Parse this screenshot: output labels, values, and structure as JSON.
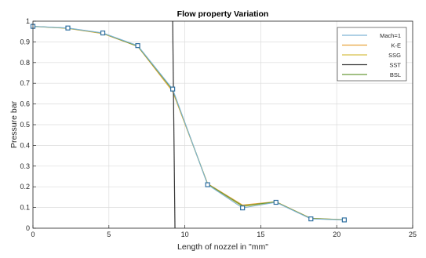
{
  "chart_data": {
    "type": "line",
    "title": "Flow property Variation",
    "xlabel": "Length of nozzel in \"mm\"",
    "ylabel": "Pressure  bar",
    "xlim": [
      0,
      25
    ],
    "ylim": [
      0,
      1
    ],
    "xticks": [
      "0",
      "5",
      "10",
      "15",
      "20",
      "25"
    ],
    "yticks": [
      "0",
      "0.1",
      "0.2",
      "0.3",
      "0.4",
      "0.5",
      "0.6",
      "0.7",
      "0.8",
      "0.9",
      "1"
    ],
    "grid": true,
    "legend_position": "top-right",
    "series": [
      {
        "name": "Mach=1",
        "color": "#7fb3d5",
        "marker": "square",
        "x": [
          0,
          2.3,
          4.6,
          6.9,
          9.2,
          11.5,
          13.8,
          16.0,
          18.3,
          20.5
        ],
        "y": [
          0.975,
          0.967,
          0.943,
          0.882,
          0.672,
          0.21,
          0.098,
          0.125,
          0.045,
          0.04
        ]
      },
      {
        "name": "K-E",
        "color": "#e8a33d",
        "marker": "none",
        "x": [
          0,
          2.3,
          4.6,
          6.9,
          9.2,
          11.5,
          13.8,
          16.0,
          18.3,
          20.5
        ],
        "y": [
          0.975,
          0.965,
          0.94,
          0.878,
          0.66,
          0.215,
          0.112,
          0.128,
          0.048,
          0.041
        ]
      },
      {
        "name": "SSG",
        "color": "#d8c04a",
        "marker": "none",
        "x": [
          0,
          2.3,
          4.6,
          6.9,
          9.2,
          11.5,
          13.8,
          16.0,
          18.3,
          20.5
        ],
        "y": [
          0.974,
          0.966,
          0.941,
          0.88,
          0.665,
          0.212,
          0.105,
          0.126,
          0.046,
          0.04
        ]
      },
      {
        "name": "SST",
        "color": "#333333",
        "marker": "none",
        "x": [
          9.2,
          9.35
        ],
        "y": [
          1.0,
          0.0
        ]
      },
      {
        "name": "BSL",
        "color": "#6a9a3a",
        "marker": "none",
        "x": [
          0,
          2.3,
          4.6,
          6.9,
          9.2,
          11.5,
          13.8,
          16.0,
          18.3,
          20.5
        ],
        "y": [
          0.975,
          0.966,
          0.942,
          0.879,
          0.668,
          0.213,
          0.108,
          0.127,
          0.047,
          0.041
        ]
      }
    ]
  }
}
